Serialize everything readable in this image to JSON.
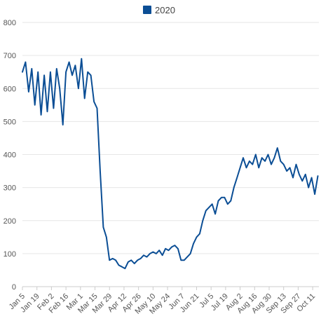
{
  "chart_data": {
    "type": "line",
    "title": "",
    "xlabel": "",
    "ylabel": "",
    "ylim": [
      0,
      800
    ],
    "yticks": [
      0,
      100,
      200,
      300,
      400,
      500,
      600,
      700,
      800
    ],
    "grid": "horizontal",
    "legend": "top-center",
    "x_tick_labels": [
      "Jan 5",
      "Jan 19",
      "Feb 2",
      "Feb 16",
      "Mar 1",
      "Mar 15",
      "Mar 29",
      "Apr 12",
      "Apr 26",
      "May 10",
      "May 24",
      "Jun 7",
      "Jun 21",
      "Jul 5",
      "Jul 19",
      "Aug 2",
      "Aug 16",
      "Aug 30",
      "Sep 13",
      "Sep 27",
      "Oct 11"
    ],
    "x_range": [
      "2020-01-05",
      "2020-10-17"
    ],
    "series": [
      {
        "name": "2020",
        "color": "#0b4e95",
        "x": [
          "2020-01-05",
          "2020-01-08",
          "2020-01-11",
          "2020-01-14",
          "2020-01-17",
          "2020-01-20",
          "2020-01-23",
          "2020-01-26",
          "2020-01-29",
          "2020-02-01",
          "2020-02-04",
          "2020-02-07",
          "2020-02-10",
          "2020-02-13",
          "2020-02-16",
          "2020-02-19",
          "2020-02-22",
          "2020-02-25",
          "2020-02-28",
          "2020-03-02",
          "2020-03-05",
          "2020-03-08",
          "2020-03-11",
          "2020-03-14",
          "2020-03-17",
          "2020-03-20",
          "2020-03-23",
          "2020-03-26",
          "2020-03-29",
          "2020-04-01",
          "2020-04-04",
          "2020-04-07",
          "2020-04-10",
          "2020-04-13",
          "2020-04-16",
          "2020-04-19",
          "2020-04-22",
          "2020-04-25",
          "2020-04-28",
          "2020-05-01",
          "2020-05-04",
          "2020-05-07",
          "2020-05-10",
          "2020-05-13",
          "2020-05-16",
          "2020-05-19",
          "2020-05-22",
          "2020-05-25",
          "2020-05-28",
          "2020-05-31",
          "2020-06-03",
          "2020-06-06",
          "2020-06-09",
          "2020-06-12",
          "2020-06-15",
          "2020-06-18",
          "2020-06-21",
          "2020-06-24",
          "2020-06-27",
          "2020-06-30",
          "2020-07-03",
          "2020-07-06",
          "2020-07-09",
          "2020-07-12",
          "2020-07-15",
          "2020-07-18",
          "2020-07-21",
          "2020-07-24",
          "2020-07-27",
          "2020-07-30",
          "2020-08-02",
          "2020-08-05",
          "2020-08-08",
          "2020-08-11",
          "2020-08-14",
          "2020-08-17",
          "2020-08-20",
          "2020-08-23",
          "2020-08-26",
          "2020-08-29",
          "2020-09-01",
          "2020-09-04",
          "2020-09-07",
          "2020-09-10",
          "2020-09-13",
          "2020-09-16",
          "2020-09-19",
          "2020-09-22",
          "2020-09-25",
          "2020-09-28",
          "2020-10-01",
          "2020-10-04",
          "2020-10-07",
          "2020-10-10",
          "2020-10-13",
          "2020-10-16"
        ],
        "values": [
          650,
          680,
          590,
          660,
          550,
          650,
          520,
          640,
          530,
          650,
          540,
          660,
          600,
          490,
          650,
          680,
          640,
          670,
          600,
          690,
          570,
          650,
          640,
          560,
          540,
          350,
          180,
          150,
          80,
          85,
          80,
          65,
          60,
          55,
          75,
          80,
          70,
          80,
          85,
          95,
          90,
          100,
          105,
          100,
          110,
          95,
          115,
          110,
          120,
          125,
          115,
          80,
          80,
          90,
          100,
          130,
          150,
          160,
          200,
          230,
          240,
          250,
          220,
          260,
          270,
          270,
          250,
          260,
          300,
          330,
          360,
          390,
          360,
          380,
          370,
          400,
          360,
          390,
          380,
          400,
          370,
          390,
          420,
          380,
          370,
          350,
          360,
          330,
          370,
          340,
          320,
          340,
          300,
          330,
          280,
          335
        ]
      }
    ]
  }
}
